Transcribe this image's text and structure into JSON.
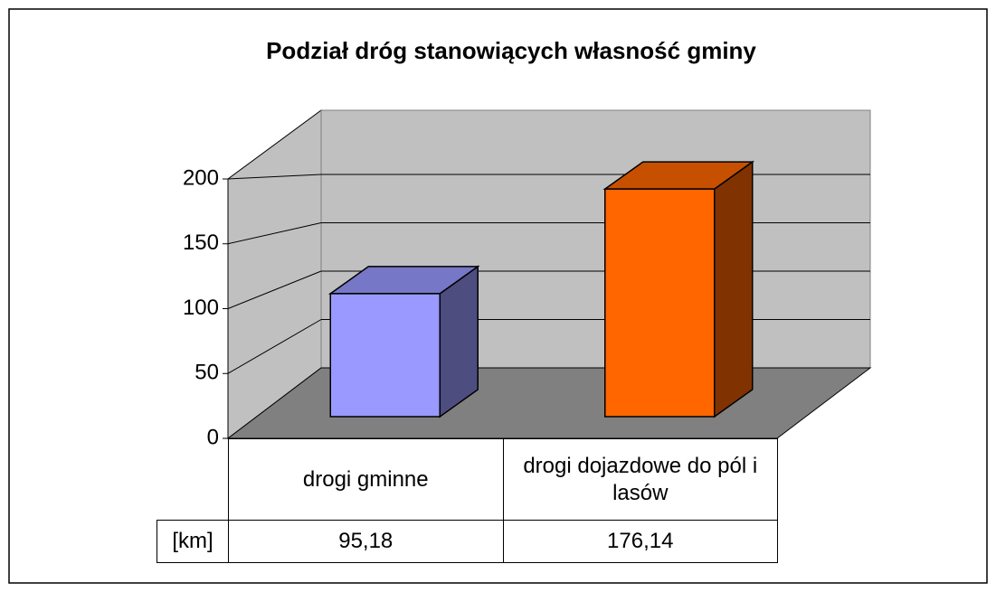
{
  "chart_data": {
    "type": "bar3d",
    "title": "Podział dróg stanowiących własność gminy",
    "categories": [
      "drogi gminne",
      "drogi dojazdowe do pól i lasów"
    ],
    "series": [
      {
        "name": "[km]",
        "colors": [
          "#9999ff",
          "#ff6600"
        ],
        "values": [
          95.18,
          176.14
        ],
        "value_labels": [
          "95,18",
          "176,14"
        ]
      }
    ],
    "ylim": [
      0,
      200
    ],
    "yticks": [
      0,
      50,
      100,
      150,
      200
    ],
    "grid": true
  }
}
